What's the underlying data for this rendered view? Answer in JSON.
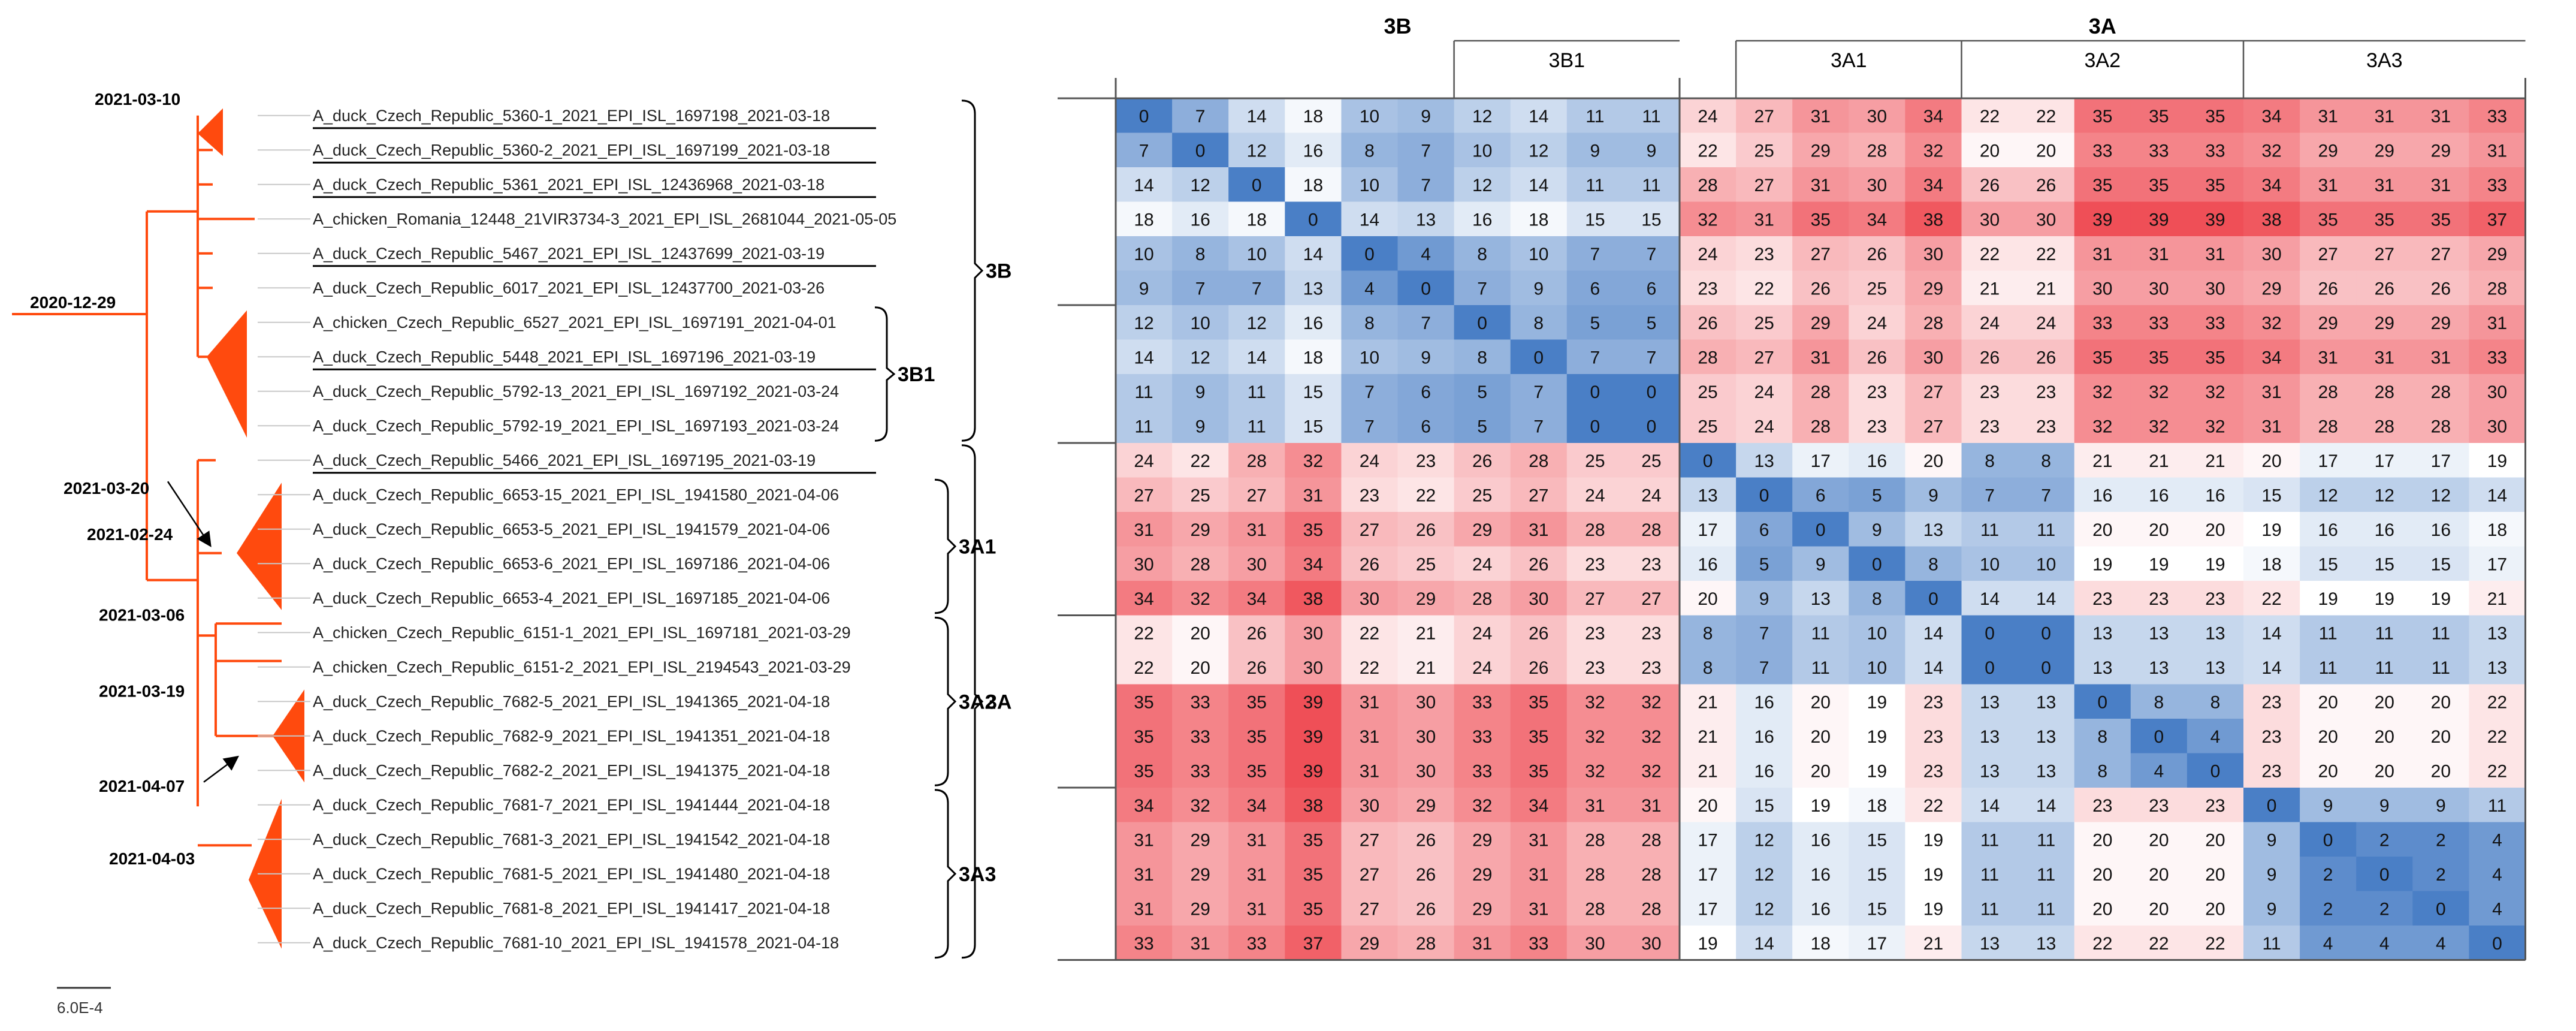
{
  "tree": {
    "leaves": [
      {
        "label": "A_duck_Czech_Republic_5360-1_2021_EPI_ISL_1697198_2021-03-18",
        "underline": true
      },
      {
        "label": "A_duck_Czech_Republic_5360-2_2021_EPI_ISL_1697199_2021-03-18",
        "underline": true
      },
      {
        "label": "A_duck_Czech_Republic_5361_2021_EPI_ISL_12436968_2021-03-18",
        "underline": true
      },
      {
        "label": "A_chicken_Romania_12448_21VIR3734-3_2021_EPI_ISL_2681044_2021-05-05",
        "underline": false
      },
      {
        "label": "A_duck_Czech_Republic_5467_2021_EPI_ISL_12437699_2021-03-19",
        "underline": true
      },
      {
        "label": "A_duck_Czech_Republic_6017_2021_EPI_ISL_12437700_2021-03-26",
        "underline": false
      },
      {
        "label": "A_chicken_Czech_Republic_6527_2021_EPI_ISL_1697191_2021-04-01",
        "underline": false
      },
      {
        "label": "A_duck_Czech_Republic_5448_2021_EPI_ISL_1697196_2021-03-19",
        "underline": true
      },
      {
        "label": "A_duck_Czech_Republic_5792-13_2021_EPI_ISL_1697192_2021-03-24",
        "underline": false
      },
      {
        "label": "A_duck_Czech_Republic_5792-19_2021_EPI_ISL_1697193_2021-03-24",
        "underline": false
      },
      {
        "label": "A_duck_Czech_Republic_5466_2021_EPI_ISL_1697195_2021-03-19",
        "underline": true
      },
      {
        "label": "A_duck_Czech_Republic_6653-15_2021_EPI_ISL_1941580_2021-04-06",
        "underline": false
      },
      {
        "label": "A_duck_Czech_Republic_6653-5_2021_EPI_ISL_1941579_2021-04-06",
        "underline": false
      },
      {
        "label": "A_duck_Czech_Republic_6653-6_2021_EPI_ISL_1697186_2021-04-06",
        "underline": false
      },
      {
        "label": "A_duck_Czech_Republic_6653-4_2021_EPI_ISL_1697185_2021-04-06",
        "underline": false
      },
      {
        "label": "A_chicken_Czech_Republic_6151-1_2021_EPI_ISL_1697181_2021-03-29",
        "underline": false
      },
      {
        "label": "A_chicken_Czech_Republic_6151-2_2021_EPI_ISL_2194543_2021-03-29",
        "underline": false
      },
      {
        "label": "A_duck_Czech_Republic_7682-5_2021_EPI_ISL_1941365_2021-04-18",
        "underline": false
      },
      {
        "label": "A_duck_Czech_Republic_7682-9_2021_EPI_ISL_1941351_2021-04-18",
        "underline": false
      },
      {
        "label": "A_duck_Czech_Republic_7682-2_2021_EPI_ISL_1941375_2021-04-18",
        "underline": false
      },
      {
        "label": "A_duck_Czech_Republic_7681-7_2021_EPI_ISL_1941444_2021-04-18",
        "underline": false
      },
      {
        "label": "A_duck_Czech_Republic_7681-3_2021_EPI_ISL_1941542_2021-04-18",
        "underline": false
      },
      {
        "label": "A_duck_Czech_Republic_7681-5_2021_EPI_ISL_1941480_2021-04-18",
        "underline": false
      },
      {
        "label": "A_duck_Czech_Republic_7681-8_2021_EPI_ISL_1941417_2021-04-18",
        "underline": false
      },
      {
        "label": "A_duck_Czech_Republic_7681-10_2021_EPI_ISL_1941578_2021-04-18",
        "underline": false
      }
    ],
    "node_dates": {
      "root": "2020-12-29",
      "n_3b": "2021-03-10",
      "n_3a_arrow": "2021-03-20",
      "n_3a": "2021-02-24",
      "n_3a2": "2021-03-06",
      "n_3a2b": "2021-03-19",
      "n_7682": "2021-04-07",
      "n_3a3": "2021-04-03"
    },
    "clades": [
      "3B",
      "3B1",
      "3A1",
      "3A2",
      "3A3",
      "3A"
    ],
    "scale_bar": "6.0E-4"
  },
  "matrix": {
    "groups": {
      "g3b": "3B",
      "g3a": "3A"
    },
    "subgroups": [
      "3B1",
      "3A1",
      "3A2",
      "3A3"
    ],
    "values": [
      [
        0,
        7,
        14,
        18,
        10,
        9,
        12,
        14,
        11,
        11,
        24,
        27,
        31,
        30,
        34,
        22,
        22,
        35,
        35,
        35,
        34,
        31,
        31,
        31,
        33
      ],
      [
        7,
        0,
        12,
        16,
        8,
        7,
        10,
        12,
        9,
        9,
        22,
        25,
        29,
        28,
        32,
        20,
        20,
        33,
        33,
        33,
        32,
        29,
        29,
        29,
        31
      ],
      [
        14,
        12,
        0,
        18,
        10,
        7,
        12,
        14,
        11,
        11,
        28,
        27,
        31,
        30,
        34,
        26,
        26,
        35,
        35,
        35,
        34,
        31,
        31,
        31,
        33
      ],
      [
        18,
        16,
        18,
        0,
        14,
        13,
        16,
        18,
        15,
        15,
        32,
        31,
        35,
        34,
        38,
        30,
        30,
        39,
        39,
        39,
        38,
        35,
        35,
        35,
        37
      ],
      [
        10,
        8,
        10,
        14,
        0,
        4,
        8,
        10,
        7,
        7,
        24,
        23,
        27,
        26,
        30,
        22,
        22,
        31,
        31,
        31,
        30,
        27,
        27,
        27,
        29
      ],
      [
        9,
        7,
        7,
        13,
        4,
        0,
        7,
        9,
        6,
        6,
        23,
        22,
        26,
        25,
        29,
        21,
        21,
        30,
        30,
        30,
        29,
        26,
        26,
        26,
        28
      ],
      [
        12,
        10,
        12,
        16,
        8,
        7,
        0,
        8,
        5,
        5,
        26,
        25,
        29,
        24,
        28,
        24,
        24,
        33,
        33,
        33,
        32,
        29,
        29,
        29,
        31
      ],
      [
        14,
        12,
        14,
        18,
        10,
        9,
        8,
        0,
        7,
        7,
        28,
        27,
        31,
        26,
        30,
        26,
        26,
        35,
        35,
        35,
        34,
        31,
        31,
        31,
        33
      ],
      [
        11,
        9,
        11,
        15,
        7,
        6,
        5,
        7,
        0,
        0,
        25,
        24,
        28,
        23,
        27,
        23,
        23,
        32,
        32,
        32,
        31,
        28,
        28,
        28,
        30
      ],
      [
        11,
        9,
        11,
        15,
        7,
        6,
        5,
        7,
        0,
        0,
        25,
        24,
        28,
        23,
        27,
        23,
        23,
        32,
        32,
        32,
        31,
        28,
        28,
        28,
        30
      ],
      [
        24,
        22,
        28,
        32,
        24,
        23,
        26,
        28,
        25,
        25,
        0,
        13,
        17,
        16,
        20,
        8,
        8,
        21,
        21,
        21,
        20,
        17,
        17,
        17,
        19
      ],
      [
        27,
        25,
        27,
        31,
        23,
        22,
        25,
        27,
        24,
        24,
        13,
        0,
        6,
        5,
        9,
        7,
        7,
        16,
        16,
        16,
        15,
        12,
        12,
        12,
        14
      ],
      [
        31,
        29,
        31,
        35,
        27,
        26,
        29,
        31,
        28,
        28,
        17,
        6,
        0,
        9,
        13,
        11,
        11,
        20,
        20,
        20,
        19,
        16,
        16,
        16,
        18
      ],
      [
        30,
        28,
        30,
        34,
        26,
        25,
        24,
        26,
        23,
        23,
        16,
        5,
        9,
        0,
        8,
        10,
        10,
        19,
        19,
        19,
        18,
        15,
        15,
        15,
        17
      ],
      [
        34,
        32,
        34,
        38,
        30,
        29,
        28,
        30,
        27,
        27,
        20,
        9,
        13,
        8,
        0,
        14,
        14,
        23,
        23,
        23,
        22,
        19,
        19,
        19,
        21
      ],
      [
        22,
        20,
        26,
        30,
        22,
        21,
        24,
        26,
        23,
        23,
        8,
        7,
        11,
        10,
        14,
        0,
        0,
        13,
        13,
        13,
        14,
        11,
        11,
        11,
        13
      ],
      [
        22,
        20,
        26,
        30,
        22,
        21,
        24,
        26,
        23,
        23,
        8,
        7,
        11,
        10,
        14,
        0,
        0,
        13,
        13,
        13,
        14,
        11,
        11,
        11,
        13
      ],
      [
        35,
        33,
        35,
        39,
        31,
        30,
        33,
        35,
        32,
        32,
        21,
        16,
        20,
        19,
        23,
        13,
        13,
        0,
        8,
        8,
        23,
        20,
        20,
        20,
        22
      ],
      [
        35,
        33,
        35,
        39,
        31,
        30,
        33,
        35,
        32,
        32,
        21,
        16,
        20,
        19,
        23,
        13,
        13,
        8,
        0,
        4,
        23,
        20,
        20,
        20,
        22
      ],
      [
        35,
        33,
        35,
        39,
        31,
        30,
        33,
        35,
        32,
        32,
        21,
        16,
        20,
        19,
        23,
        13,
        13,
        8,
        4,
        0,
        23,
        20,
        20,
        20,
        22
      ],
      [
        34,
        32,
        34,
        38,
        30,
        29,
        32,
        34,
        31,
        31,
        20,
        15,
        19,
        18,
        22,
        14,
        14,
        23,
        23,
        23,
        0,
        9,
        9,
        9,
        11
      ],
      [
        31,
        29,
        31,
        35,
        27,
        26,
        29,
        31,
        28,
        28,
        17,
        12,
        16,
        15,
        19,
        11,
        11,
        20,
        20,
        20,
        9,
        0,
        2,
        2,
        4
      ],
      [
        31,
        29,
        31,
        35,
        27,
        26,
        29,
        31,
        28,
        28,
        17,
        12,
        16,
        15,
        19,
        11,
        11,
        20,
        20,
        20,
        9,
        2,
        0,
        2,
        4
      ],
      [
        31,
        29,
        31,
        35,
        27,
        26,
        29,
        31,
        28,
        28,
        17,
        12,
        16,
        15,
        19,
        11,
        11,
        20,
        20,
        20,
        9,
        2,
        2,
        0,
        4
      ],
      [
        33,
        31,
        33,
        37,
        29,
        28,
        31,
        33,
        30,
        30,
        19,
        14,
        18,
        17,
        21,
        13,
        13,
        22,
        22,
        22,
        11,
        4,
        4,
        4,
        0
      ]
    ],
    "colors": {
      "low": "#4a7fc6",
      "mid": "#ffffff",
      "high": "#ef4f57",
      "line": "#000000",
      "tree": "#ff4a0e"
    }
  }
}
